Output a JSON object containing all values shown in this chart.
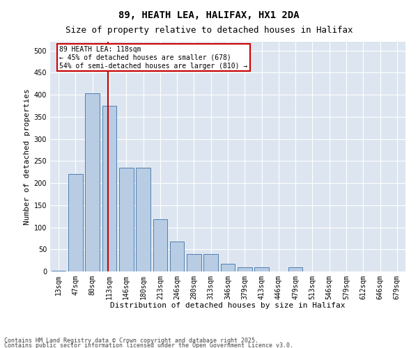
{
  "title1": "89, HEATH LEA, HALIFAX, HX1 2DA",
  "title2": "Size of property relative to detached houses in Halifax",
  "xlabel": "Distribution of detached houses by size in Halifax",
  "ylabel": "Number of detached properties",
  "categories": [
    "13sqm",
    "47sqm",
    "80sqm",
    "113sqm",
    "146sqm",
    "180sqm",
    "213sqm",
    "246sqm",
    "280sqm",
    "313sqm",
    "346sqm",
    "379sqm",
    "413sqm",
    "446sqm",
    "479sqm",
    "513sqm",
    "546sqm",
    "579sqm",
    "612sqm",
    "646sqm",
    "679sqm"
  ],
  "values": [
    2,
    220,
    403,
    375,
    235,
    235,
    118,
    68,
    40,
    40,
    18,
    10,
    10,
    0,
    10,
    0,
    0,
    0,
    0,
    0,
    0
  ],
  "bar_color": "#b8cce4",
  "bar_edge_color": "#5080b0",
  "vline_color": "#cc0000",
  "vline_x": 2.9,
  "annotation_text": "89 HEATH LEA: 118sqm\n← 45% of detached houses are smaller (678)\n54% of semi-detached houses are larger (810) →",
  "annotation_box_color": "#ffffff",
  "annotation_box_edge_color": "#cc0000",
  "ylim": [
    0,
    520
  ],
  "yticks": [
    0,
    50,
    100,
    150,
    200,
    250,
    300,
    350,
    400,
    450,
    500
  ],
  "background_color": "#dde6f0",
  "footer1": "Contains HM Land Registry data © Crown copyright and database right 2025.",
  "footer2": "Contains public sector information licensed under the Open Government Licence v3.0.",
  "title1_fontsize": 10,
  "title2_fontsize": 9,
  "axis_label_fontsize": 8,
  "tick_fontsize": 7,
  "annotation_fontsize": 7,
  "footer_fontsize": 6
}
